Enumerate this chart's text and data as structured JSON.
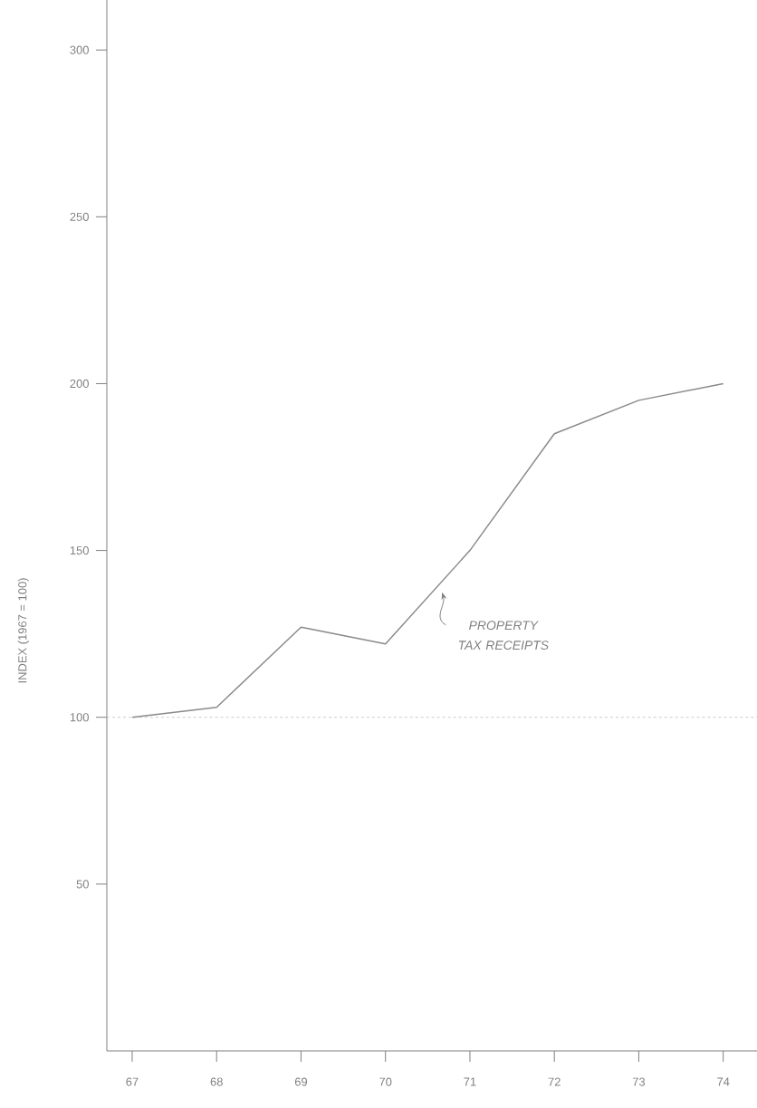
{
  "chart_data": {
    "type": "line",
    "ylabel": "INDEX (1967 = 100)",
    "x": [
      67,
      68,
      69,
      70,
      71,
      72,
      73,
      74
    ],
    "series": [
      {
        "color": "#8a8a8a",
        "values": [
          100,
          103,
          127,
          122,
          150,
          185,
          195,
          200
        ]
      }
    ],
    "xlim": [
      66.7,
      74.4
    ],
    "ylim": [
      0,
      315
    ],
    "xticks": [
      67,
      68,
      69,
      70,
      71,
      72,
      73,
      74
    ],
    "yticks": [
      50,
      100,
      150,
      200,
      250,
      300
    ],
    "ref_lines": [
      {
        "axis": "y",
        "value": 100,
        "color": "#cccccc",
        "line_style": "dashed"
      }
    ],
    "annotations": [
      "PROPERTY TAX RECEIPTS"
    ],
    "grid": false,
    "marker": "none",
    "line_style": "solid"
  }
}
